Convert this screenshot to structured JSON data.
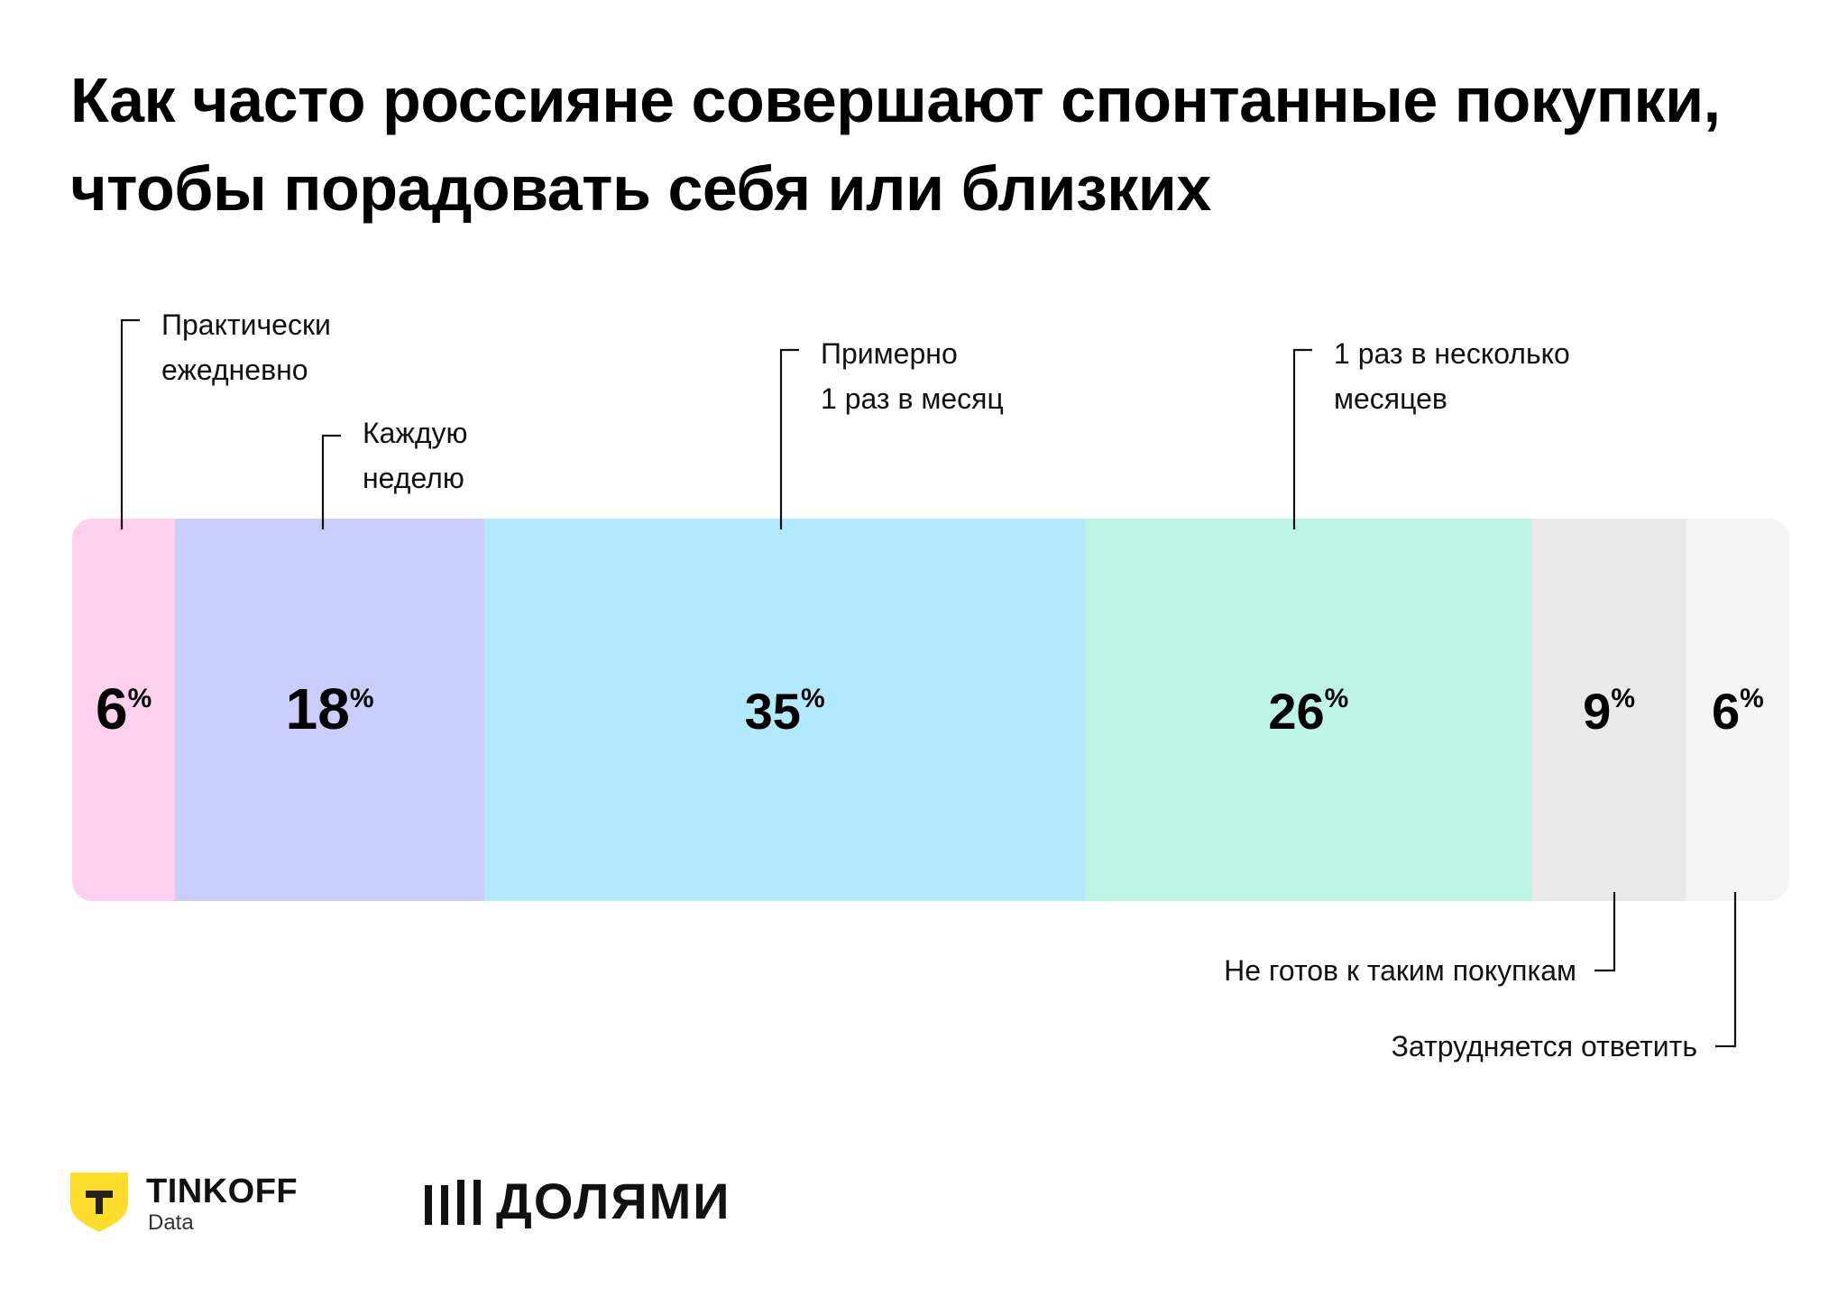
{
  "header": {
    "title": "Как часто россияне совершают спонтанные покупки, чтобы порадовать себя или близких"
  },
  "chart_data": {
    "type": "bar",
    "orientation": "horizontal-stacked",
    "unit": "%",
    "categories": [
      "Практически ежедневно",
      "Каждую неделю",
      "Примерно 1 раз в месяц",
      "1 раз в несколько месяцев",
      "Не готов к таким покупкам",
      "Затрудняется ответить"
    ],
    "label_lines": [
      [
        "Практически",
        "ежедневно"
      ],
      [
        "Каждую",
        "неделю"
      ],
      [
        "Примерно",
        "1 раз в месяц"
      ],
      [
        "1 раз в несколько",
        "месяцев"
      ],
      [
        "Не готов к таким покупкам"
      ],
      [
        "Затрудняется ответить"
      ]
    ],
    "values": [
      6,
      18,
      35,
      26,
      9,
      6
    ],
    "colors": [
      "#FDD0EE",
      "#CBCDFB",
      "#B3E9FC",
      "#BDF4E5",
      "#E9E9E9",
      "#F4F4F4"
    ]
  },
  "branding": {
    "tinkoff_name": "TINKOFF",
    "tinkoff_sub": "Data",
    "tinkoff_color": "#FFDD2D",
    "dolyami_name": "ДОЛЯМИ"
  }
}
